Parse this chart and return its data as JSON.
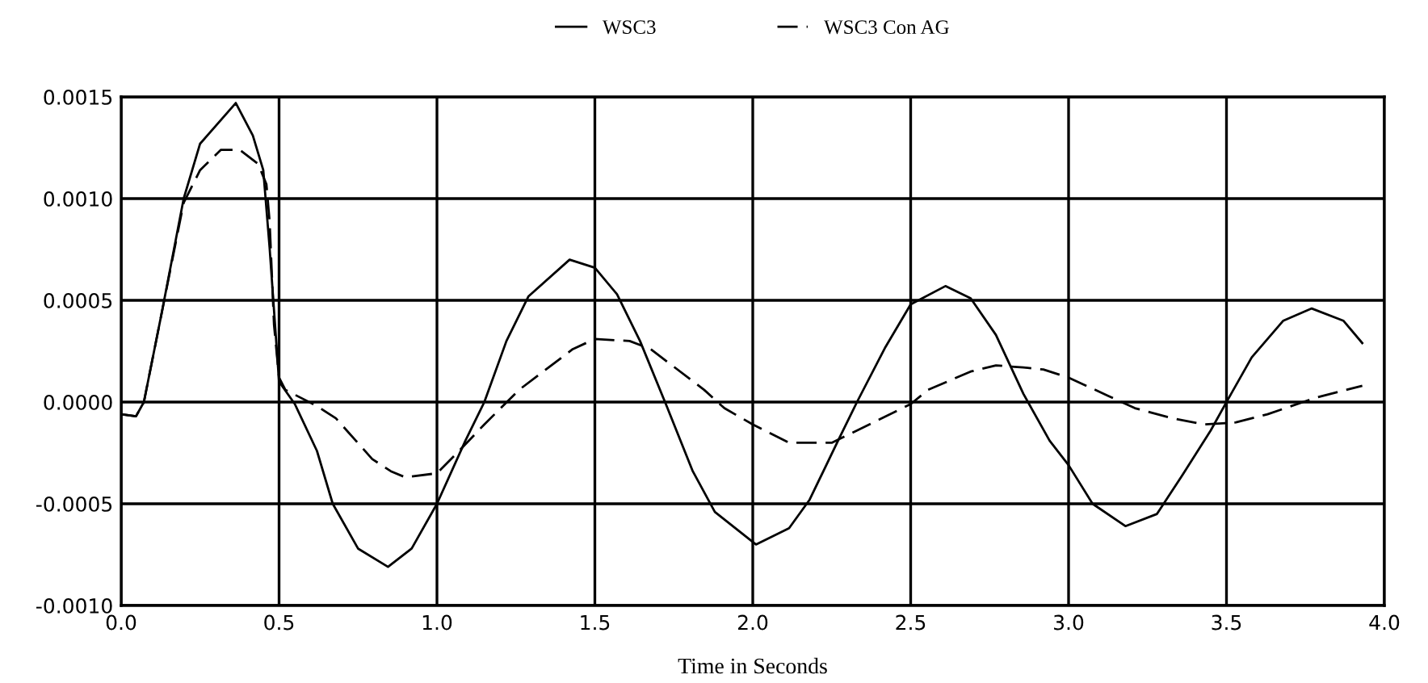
{
  "chart_data": {
    "type": "line",
    "xlabel": "Time in Seconds",
    "xlim": [
      0,
      4
    ],
    "ylim": [
      -0.001,
      0.0015
    ],
    "xticks": [
      {
        "value": 0,
        "label": "0.0"
      },
      {
        "value": 0.5,
        "label": "0.5"
      },
      {
        "value": 1,
        "label": "1.0"
      },
      {
        "value": 1.5,
        "label": "1.5"
      },
      {
        "value": 2,
        "label": "2.0"
      },
      {
        "value": 2.5,
        "label": "2.5"
      },
      {
        "value": 3,
        "label": "3.0"
      },
      {
        "value": 3.5,
        "label": "3.5"
      },
      {
        "value": 4,
        "label": "4.0"
      }
    ],
    "yticks": [
      {
        "value": -0.001,
        "label": "-0.0010"
      },
      {
        "value": -0.0005,
        "label": "-0.0005"
      },
      {
        "value": 0,
        "label": "0.0000"
      },
      {
        "value": 0.0005,
        "label": "0.0005"
      },
      {
        "value": 0.001,
        "label": "0.0010"
      },
      {
        "value": 0.0015,
        "label": "0.0015"
      }
    ],
    "grid": true,
    "legend": "top",
    "marker": "none",
    "series": [
      {
        "name": "WSC3",
        "color": "#000000",
        "line_style": "solid",
        "x": [
          0,
          0.047,
          0.072,
          0.13,
          0.198,
          0.25,
          0.363,
          0.417,
          0.45,
          0.47,
          0.49,
          0.5,
          0.55,
          0.62,
          0.67,
          0.75,
          0.845,
          0.92,
          1.0,
          1.09,
          1.15,
          1.22,
          1.29,
          1.42,
          1.5,
          1.57,
          1.643,
          1.73,
          1.81,
          1.88,
          2.01,
          2.115,
          2.18,
          2.27,
          2.33,
          2.42,
          2.5,
          2.61,
          2.69,
          2.77,
          2.857,
          2.94,
          3.0,
          3.076,
          3.18,
          3.28,
          3.36,
          3.45,
          3.5,
          3.58,
          3.68,
          3.77,
          3.87,
          3.93
        ],
        "values": [
          -6e-05,
          -7e-05,
          0.0,
          0.00045,
          0.001,
          0.00127,
          0.00147,
          0.00131,
          0.00114,
          0.00076,
          0.00032,
          0.0001,
          -1e-05,
          -0.00024,
          -0.0005,
          -0.00072,
          -0.00081,
          -0.00072,
          -0.0005,
          -0.00019,
          0.0,
          0.0003,
          0.00052,
          0.0007,
          0.00066,
          0.00053,
          0.0003,
          -3e-05,
          -0.00034,
          -0.00054,
          -0.0007,
          -0.00062,
          -0.00048,
          -0.00019,
          0.0,
          0.00027,
          0.00048,
          0.00057,
          0.00051,
          0.00033,
          4e-05,
          -0.00019,
          -0.00031,
          -0.0005,
          -0.00061,
          -0.00055,
          -0.00036,
          -0.00014,
          0.0,
          0.00022,
          0.0004,
          0.00046,
          0.0004,
          0.00029
        ]
      },
      {
        "name": "WSC3 Con AG",
        "color": "#000000",
        "line_style": "dashed",
        "x": [
          0,
          0.047,
          0.072,
          0.13,
          0.198,
          0.25,
          0.316,
          0.375,
          0.434,
          0.46,
          0.47,
          0.484,
          0.5,
          0.52,
          0.62,
          0.68,
          0.795,
          0.854,
          0.9,
          1.0,
          1.07,
          1.15,
          1.26,
          1.43,
          1.5,
          1.61,
          1.677,
          1.846,
          1.91,
          2.0,
          2.115,
          2.25,
          2.33,
          2.5,
          2.555,
          2.69,
          2.77,
          2.857,
          2.92,
          3.0,
          3.126,
          3.21,
          3.33,
          3.43,
          3.53,
          3.63,
          3.78,
          3.93
        ],
        "values": [
          -6e-05,
          -7e-05,
          0.0,
          0.00045,
          0.00098,
          0.00114,
          0.00124,
          0.00124,
          0.00117,
          0.00107,
          0.00089,
          0.00038,
          0.00012,
          6e-05,
          -2e-05,
          -8e-05,
          -0.00028,
          -0.00034,
          -0.00037,
          -0.00035,
          -0.00024,
          -0.00011,
          6e-05,
          0.00026,
          0.00031,
          0.0003,
          0.00026,
          6e-05,
          -3e-05,
          -0.00011,
          -0.0002,
          -0.0002,
          -0.00014,
          -1e-05,
          6e-05,
          0.00015,
          0.00018,
          0.00017,
          0.00016,
          0.00012,
          3e-05,
          -3e-05,
          -8e-05,
          -0.00011,
          -0.0001,
          -6e-05,
          2e-05,
          8e-05
        ]
      }
    ]
  }
}
